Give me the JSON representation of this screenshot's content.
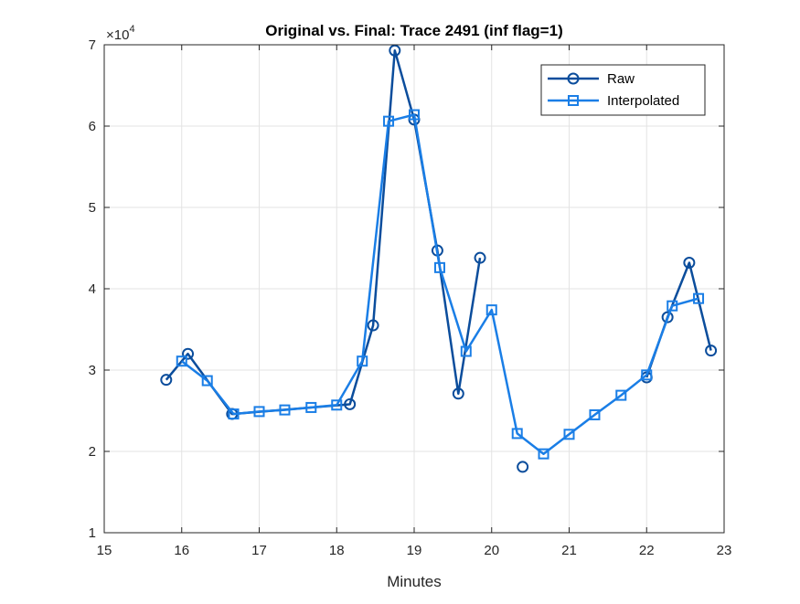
{
  "chart_data": {
    "type": "line",
    "title": "Original vs. Final: Trace 2491 (inf flag=1)",
    "xlabel": "Minutes",
    "ylabel": "",
    "xlim": [
      15,
      23
    ],
    "ylim": [
      1,
      7
    ],
    "y_exponent_label": "×10",
    "y_exponent_power": "4",
    "x_ticks": [
      "15",
      "16",
      "17",
      "18",
      "19",
      "20",
      "21",
      "22",
      "23"
    ],
    "y_ticks": [
      "1",
      "2",
      "3",
      "4",
      "5",
      "6",
      "7"
    ],
    "grid": true,
    "legend_position": "top-right",
    "series": [
      {
        "name": "Raw",
        "color": "#0B4D9C",
        "marker": "circle",
        "points": [
          [
            15.8,
            2.88
          ],
          [
            16.08,
            3.2
          ],
          [
            16.65,
            2.46
          ],
          [
            18.17,
            2.58
          ],
          [
            18.47,
            3.55
          ],
          [
            18.75,
            6.93
          ],
          [
            19.0,
            6.08
          ],
          [
            19.3,
            4.47
          ],
          [
            19.57,
            2.71
          ],
          [
            19.85,
            4.38
          ],
          null,
          [
            20.4,
            1.81
          ],
          null,
          [
            22.0,
            2.91
          ],
          [
            22.27,
            3.65
          ],
          [
            22.55,
            4.32
          ],
          [
            22.83,
            3.24
          ]
        ]
      },
      {
        "name": "Interpolated",
        "color": "#1A7EE6",
        "marker": "square",
        "points": [
          [
            16.0,
            3.11
          ],
          [
            16.33,
            2.87
          ],
          [
            16.67,
            2.46
          ],
          [
            17.0,
            2.49
          ],
          [
            17.33,
            2.51
          ],
          [
            17.67,
            2.54
          ],
          [
            18.0,
            2.57
          ],
          [
            18.33,
            3.11
          ],
          [
            18.67,
            6.06
          ],
          [
            19.0,
            6.14
          ],
          [
            19.33,
            4.26
          ],
          [
            19.67,
            3.23
          ],
          [
            20.0,
            3.74
          ],
          [
            20.33,
            2.22
          ],
          [
            20.67,
            1.97
          ],
          [
            21.0,
            2.21
          ],
          [
            21.33,
            2.45
          ],
          [
            21.67,
            2.69
          ],
          [
            22.0,
            2.94
          ],
          [
            22.33,
            3.79
          ],
          [
            22.67,
            3.88
          ]
        ]
      }
    ]
  }
}
